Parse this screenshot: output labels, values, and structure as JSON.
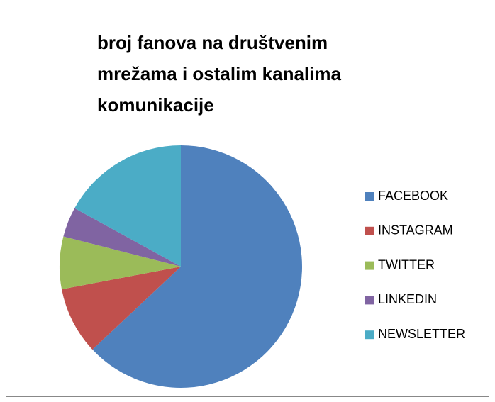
{
  "chart_data": {
    "type": "pie",
    "title": "broj fanova na društvenim mrežama i ostalim kanalima komunikacije",
    "categories": [
      "FACEBOOK",
      "INSTAGRAM",
      "TWITTER",
      "LINKEDIN",
      "NEWSLETTER"
    ],
    "values": [
      63,
      9,
      7,
      4,
      17
    ],
    "colors": [
      "#4f81bd",
      "#c0504d",
      "#9bbb59",
      "#8064a2",
      "#4bacc6"
    ],
    "legend": "right"
  }
}
